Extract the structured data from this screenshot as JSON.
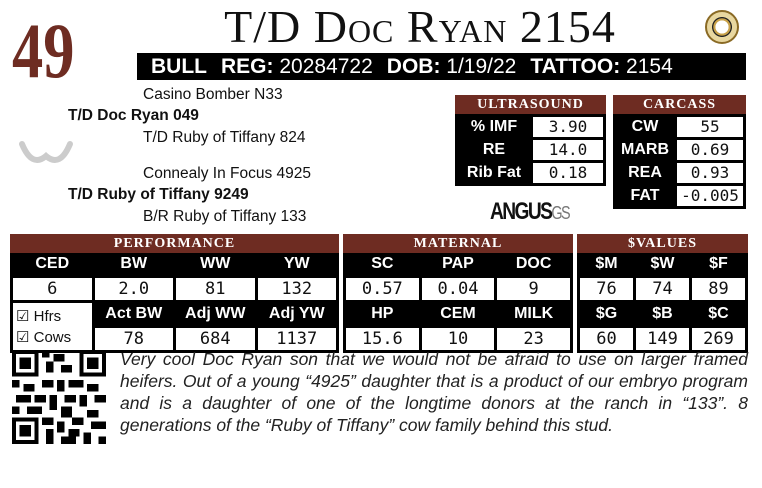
{
  "lot": "49",
  "title": "T/D Doc Ryan 2154",
  "info": {
    "sex": "BULL",
    "reg_label": "REG:",
    "reg": "20284722",
    "dob_label": "DOB:",
    "dob": "1/19/22",
    "tattoo_label": "TATTOO:",
    "tattoo": "2154"
  },
  "pedigree": {
    "sire_sire": "Casino Bomber N33",
    "sire": "T/D Doc Ryan 049",
    "sire_dam": "T/D Ruby of Tiffany 824",
    "dam_sire": "Connealy In Focus 4925",
    "dam": "T/D Ruby of Tiffany 9249",
    "dam_dam": "B/R Ruby of Tiffany 133"
  },
  "ultrasound": {
    "title": "ULTRASOUND",
    "rows": [
      {
        "label": "% IMF",
        "value": "3.90"
      },
      {
        "label": "RE",
        "value": "14.0"
      },
      {
        "label": "Rib Fat",
        "value": "0.18"
      }
    ]
  },
  "carcass": {
    "title": "CARCASS",
    "rows": [
      {
        "label": "CW",
        "value": "55"
      },
      {
        "label": "MARB",
        "value": "0.69"
      },
      {
        "label": "REA",
        "value": "0.93"
      },
      {
        "label": "FAT",
        "value": "-0.005"
      }
    ]
  },
  "angus_logo": {
    "main": "ANGUS",
    "suffix": "GS"
  },
  "performance": {
    "title": "PERFORMANCE",
    "h1": [
      "CED",
      "BW",
      "WW",
      "YW"
    ],
    "v1": [
      "6",
      "2.0",
      "81",
      "132"
    ],
    "h2": [
      "Act BW",
      "Adj WW",
      "Adj YW"
    ],
    "v2": [
      "78",
      "684",
      "1137"
    ],
    "checks": [
      {
        "label": "Hfrs",
        "checked": true
      },
      {
        "label": "Cows",
        "checked": true
      }
    ]
  },
  "maternal": {
    "title": "MATERNAL",
    "h1": [
      "SC",
      "PAP",
      "DOC"
    ],
    "v1": [
      "0.57",
      "0.04",
      "9"
    ],
    "h2": [
      "HP",
      "CEM",
      "MILK"
    ],
    "v2": [
      "15.6",
      "10",
      "23"
    ]
  },
  "values": {
    "title": "$VALUES",
    "h1": [
      "$M",
      "$W",
      "$F"
    ],
    "v1": [
      "76",
      "74",
      "89"
    ],
    "h2": [
      "$G",
      "$B",
      "$C"
    ],
    "v2": [
      "60",
      "149",
      "269"
    ]
  },
  "description": "Very cool Doc Ryan son that we would not be afraid to use on larger framed heifers. Out of a young “4925” daughter that is a product of our embryo program and is a daughter of one of the longtime donors at the ranch in “133”. 8 generations of the “Ruby of Tiffany” cow family behind this stud.",
  "colors": {
    "accent": "#6e2c22"
  }
}
